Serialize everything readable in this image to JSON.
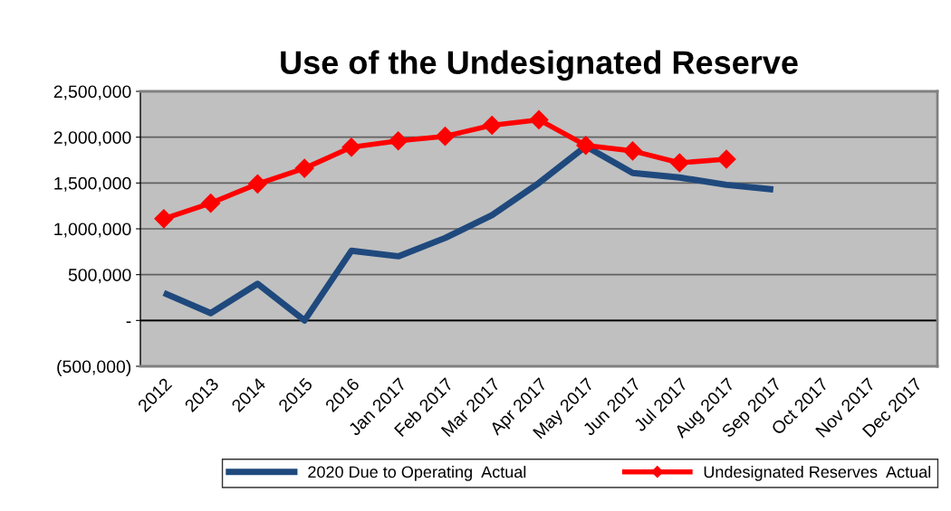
{
  "chart_data": {
    "type": "line",
    "title": "Use of the Undesignated Reserve",
    "categories": [
      "2012",
      "2013",
      "2014",
      "2015",
      "2016",
      "Jan 2017",
      "Feb 2017",
      "Mar 2017",
      "Apr 2017",
      "May 2017",
      "Jun 2017",
      "Jul 2017",
      "Aug 2017",
      "Sep 2017",
      "Oct 2017",
      "Nov 2017",
      "Dec 2017"
    ],
    "series": [
      {
        "name": "2020 Due to Operating  Actual",
        "color": "#1f497d",
        "marker": "none",
        "values": [
          300000,
          80000,
          400000,
          0,
          760000,
          700000,
          900000,
          1150000,
          1500000,
          1900000,
          1610000,
          1560000,
          1480000,
          1430000,
          null,
          null,
          null
        ]
      },
      {
        "name": "Undesignated Reserves  Actual",
        "color": "#ff0000",
        "marker": "diamond",
        "values": [
          1110000,
          1280000,
          1490000,
          1660000,
          1890000,
          1960000,
          2010000,
          2130000,
          2190000,
          1910000,
          1850000,
          1720000,
          1760000,
          null,
          null,
          null,
          null
        ]
      }
    ],
    "ylim": [
      -500000,
      2500000
    ],
    "yticks": [
      {
        "value": -500000,
        "label": "(500,000)"
      },
      {
        "value": 0,
        "label": "-"
      },
      {
        "value": 500000,
        "label": "500,000"
      },
      {
        "value": 1000000,
        "label": "1,000,000"
      },
      {
        "value": 1500000,
        "label": "1,500,000"
      },
      {
        "value": 2000000,
        "label": "2,000,000"
      },
      {
        "value": 2500000,
        "label": "2,500,000"
      }
    ],
    "grid": "y",
    "legend": "bottom",
    "line_style": "solid"
  }
}
